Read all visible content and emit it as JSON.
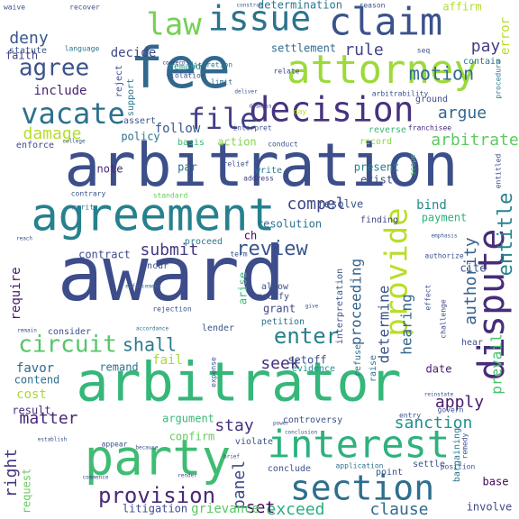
{
  "cloud": {
    "words": [
      {
        "text": "award",
        "size": 84,
        "color": "#3d4c8a",
        "rot": 0
      },
      {
        "text": "arbitration",
        "size": 66,
        "color": "#3c4f8a",
        "rot": 0
      },
      {
        "text": "fee",
        "size": 62,
        "color": "#31688e",
        "rot": 0
      },
      {
        "text": "arbitrator",
        "size": 60,
        "color": "#35b779",
        "rot": 0
      },
      {
        "text": "party",
        "size": 54,
        "color": "#3fbc73",
        "rot": 0
      },
      {
        "text": "agreement",
        "size": 50,
        "color": "#26818e",
        "rot": 0
      },
      {
        "text": "attorney",
        "size": 44,
        "color": "#9dd93b",
        "rot": 0
      },
      {
        "text": "interest",
        "size": 42,
        "color": "#2db27d",
        "rot": 0
      },
      {
        "text": "claim",
        "size": 42,
        "color": "#3b528b",
        "rot": 0
      },
      {
        "text": "dispute",
        "size": 40,
        "color": "#472c7a",
        "rot": 90
      },
      {
        "text": "decision",
        "size": 38,
        "color": "#46327e",
        "rot": 0
      },
      {
        "text": "issue",
        "size": 38,
        "color": "#2c738e",
        "rot": 0
      },
      {
        "text": "section",
        "size": 38,
        "color": "#2e6e8e",
        "rot": 0
      },
      {
        "text": "provide",
        "size": 34,
        "color": "#b8de29",
        "rot": 90
      },
      {
        "text": "law",
        "size": 34,
        "color": "#75d054",
        "rot": 0
      },
      {
        "text": "vacate",
        "size": 32,
        "color": "#2d718e",
        "rot": 0
      },
      {
        "text": "file",
        "size": 32,
        "color": "#433e85",
        "rot": 0
      },
      {
        "text": "agree",
        "size": 26,
        "color": "#3b528b",
        "rot": 0
      },
      {
        "text": "circuit",
        "size": 26,
        "color": "#55c667",
        "rot": 0
      },
      {
        "text": "provision",
        "size": 24,
        "color": "#482878",
        "rot": 0
      },
      {
        "text": "enter",
        "size": 24,
        "color": "#27808e",
        "rot": 0
      },
      {
        "text": "entitle",
        "size": 22,
        "color": "#25858e",
        "rot": 90
      },
      {
        "text": "review",
        "size": 22,
        "color": "#3a548c",
        "rot": 0
      },
      {
        "text": "motion",
        "size": 20,
        "color": "#2f6c8e",
        "rot": 0
      },
      {
        "text": "arbitrate",
        "size": 18,
        "color": "#5ec962",
        "rot": 0
      },
      {
        "text": "damage",
        "size": 18,
        "color": "#b5de2b",
        "rot": 0
      },
      {
        "text": "argue",
        "size": 18,
        "color": "#31688e",
        "rot": 0
      },
      {
        "text": "rule",
        "size": 18,
        "color": "#414487",
        "rot": 0
      },
      {
        "text": "deny",
        "size": 18,
        "color": "#39568c",
        "rot": 0
      },
      {
        "text": "pay",
        "size": 18,
        "color": "#433e85",
        "rot": 0
      },
      {
        "text": "shall",
        "size": 20,
        "color": "#2a788e",
        "rot": 0
      },
      {
        "text": "submit",
        "size": 18,
        "color": "#453882",
        "rot": 0
      },
      {
        "text": "compel",
        "size": 18,
        "color": "#404688",
        "rot": 0
      },
      {
        "text": "seek",
        "size": 18,
        "color": "#472d7b",
        "rot": 0
      },
      {
        "text": "stay",
        "size": 18,
        "color": "#46307e",
        "rot": 0
      },
      {
        "text": "matter",
        "size": 18,
        "color": "#482576",
        "rot": 0
      },
      {
        "text": "apply",
        "size": 18,
        "color": "#481a6c",
        "rot": 0
      },
      {
        "text": "sanction",
        "size": 18,
        "color": "#21918c",
        "rot": 0
      },
      {
        "text": "exceed",
        "size": 18,
        "color": "#29af7f",
        "rot": 0
      },
      {
        "text": "clause",
        "size": 18,
        "color": "#306a8e",
        "rot": 0
      },
      {
        "text": "panel",
        "size": 18,
        "color": "#3f4889",
        "rot": 90
      },
      {
        "text": "set",
        "size": 18,
        "color": "#450457",
        "rot": 0
      },
      {
        "text": "right",
        "size": 18,
        "color": "#46337f",
        "rot": 90
      },
      {
        "text": "authority",
        "size": 18,
        "color": "#355f8d",
        "rot": 90
      },
      {
        "text": "prevail",
        "size": 16,
        "color": "#4ac16d",
        "rot": 90
      },
      {
        "text": "proceeding",
        "size": 16,
        "color": "#33638d",
        "rot": 90
      },
      {
        "text": "determine",
        "size": 16,
        "color": "#3b518b",
        "rot": 90
      },
      {
        "text": "hearing",
        "size": 16,
        "color": "#32658e",
        "rot": 90
      },
      {
        "text": "require",
        "size": 14,
        "color": "#48186a",
        "rot": 90
      },
      {
        "text": "include",
        "size": 14,
        "color": "#481f70",
        "rot": 0
      },
      {
        "text": "decide",
        "size": 14,
        "color": "#3f4788",
        "rot": 0
      },
      {
        "text": "determination",
        "size": 12,
        "color": "#2a788e",
        "rot": 0
      },
      {
        "text": "settlement",
        "size": 12,
        "color": "#31688e",
        "rot": 0
      },
      {
        "text": "affirm",
        "size": 12,
        "color": "#b0dd2f",
        "rot": 0
      },
      {
        "text": "error",
        "size": 14,
        "color": "#b8de29",
        "rot": 90
      },
      {
        "text": "faith",
        "size": 12,
        "color": "#433e85",
        "rot": 0
      },
      {
        "text": "follow",
        "size": 14,
        "color": "#38598c",
        "rot": 0
      },
      {
        "text": "policy",
        "size": 12,
        "color": "#2c728e",
        "rot": 0
      },
      {
        "text": "action",
        "size": 12,
        "color": "#84d44b",
        "rot": 0
      },
      {
        "text": "cost",
        "size": 14,
        "color": "#a8db34",
        "rot": 0
      },
      {
        "text": "note",
        "size": 12,
        "color": "#482979",
        "rot": 0
      },
      {
        "text": "par",
        "size": 12,
        "color": "#2d708e",
        "rot": 0
      },
      {
        "text": "present",
        "size": 12,
        "color": "#277f8e",
        "rot": 0
      },
      {
        "text": "exist",
        "size": 12,
        "color": "#3d4e8a",
        "rot": 0
      },
      {
        "text": "resolution",
        "size": 12,
        "color": "#2d708e",
        "rot": 0
      },
      {
        "text": "bind",
        "size": 14,
        "color": "#238a8d",
        "rot": 0
      },
      {
        "text": "payment",
        "size": 12,
        "color": "#2fb47c",
        "rot": 0
      },
      {
        "text": "resolve",
        "size": 12,
        "color": "#3a538b",
        "rot": 0
      },
      {
        "text": "contract",
        "size": 12,
        "color": "#3e4989",
        "rot": 0
      },
      {
        "text": "favor",
        "size": 14,
        "color": "#31688e",
        "rot": 0
      },
      {
        "text": "remand",
        "size": 12,
        "color": "#2c728e",
        "rot": 0
      },
      {
        "text": "contend",
        "size": 12,
        "color": "#2e6f8e",
        "rot": 0
      },
      {
        "text": "result",
        "size": 12,
        "color": "#472f7d",
        "rot": 0
      },
      {
        "text": "date",
        "size": 12,
        "color": "#481b6d",
        "rot": 0
      },
      {
        "text": "argument",
        "size": 12,
        "color": "#38b977",
        "rot": 0
      },
      {
        "text": "confirm",
        "size": 12,
        "color": "#65cb5e",
        "rot": 0
      },
      {
        "text": "request",
        "size": 12,
        "color": "#67cc5c",
        "rot": 90
      },
      {
        "text": "litigation",
        "size": 12,
        "color": "#3d4d8a",
        "rot": 0
      },
      {
        "text": "grievance",
        "size": 14,
        "color": "#58c765",
        "rot": 0
      },
      {
        "text": "bargaining",
        "size": 10,
        "color": "#2a788e",
        "rot": 90
      },
      {
        "text": "base",
        "size": 12,
        "color": "#440154",
        "rot": 0
      },
      {
        "text": "involve",
        "size": 12,
        "color": "#3e4a89",
        "rot": 0
      },
      {
        "text": "fail",
        "size": 14,
        "color": "#a5db36",
        "rot": 0
      },
      {
        "text": "grant",
        "size": 12,
        "color": "#404588",
        "rot": 0
      },
      {
        "text": "arise",
        "size": 12,
        "color": "#3aba76",
        "rot": 90
      },
      {
        "text": "modify",
        "size": 10,
        "color": "#3d4e8a",
        "rot": 0
      },
      {
        "text": "refuse",
        "size": 10,
        "color": "#2d708e",
        "rot": 90
      },
      {
        "text": "raise",
        "size": 10,
        "color": "#2c728e",
        "rot": 90
      },
      {
        "text": "setoff",
        "size": 12,
        "color": "#3b528b",
        "rot": 0
      },
      {
        "text": "evidence",
        "size": 10,
        "color": "#21918c",
        "rot": 0
      },
      {
        "text": "ch",
        "size": 12,
        "color": "#440154",
        "rot": 0
      },
      {
        "text": "write",
        "size": 10,
        "color": "#2a788e",
        "rot": 0
      },
      {
        "text": "relief",
        "size": 8,
        "color": "#3b528b",
        "rot": 0
      },
      {
        "text": "address",
        "size": 8,
        "color": "#443983",
        "rot": 0
      },
      {
        "text": "incur",
        "size": 10,
        "color": "#3b528b",
        "rot": 0
      },
      {
        "text": "proceed",
        "size": 10,
        "color": "#2a788e",
        "rot": 0
      },
      {
        "text": "term",
        "size": 8,
        "color": "#39558c",
        "rot": 0
      },
      {
        "text": "standard",
        "size": 8,
        "color": "#6ccd5a",
        "rot": 0
      },
      {
        "text": "contrary",
        "size": 8,
        "color": "#3b528b",
        "rot": 0
      },
      {
        "text": "merit",
        "size": 8,
        "color": "#2c728e",
        "rot": 0
      },
      {
        "text": "enforce",
        "size": 10,
        "color": "#3f4889",
        "rot": 0
      },
      {
        "text": "reject",
        "size": 10,
        "color": "#3e4989",
        "rot": 90
      },
      {
        "text": "support",
        "size": 10,
        "color": "#2b758e",
        "rot": 90
      },
      {
        "text": "basis",
        "size": 10,
        "color": "#3aba76",
        "rot": 0
      },
      {
        "text": "demand",
        "size": 10,
        "color": "#21918c",
        "rot": 0
      },
      {
        "text": "violation",
        "size": 8,
        "color": "#3b528b",
        "rot": 0
      },
      {
        "text": "discretion",
        "size": 8,
        "color": "#2a788e",
        "rot": 0
      },
      {
        "text": "concern",
        "size": 6,
        "color": "#482878",
        "rot": 0
      },
      {
        "text": "relate",
        "size": 8,
        "color": "#3e4989",
        "rot": 0
      },
      {
        "text": "limit",
        "size": 8,
        "color": "#2c728e",
        "rot": 0
      },
      {
        "text": "deliver",
        "size": 6,
        "color": "#3b528b",
        "rot": 0
      },
      {
        "text": "arbitrability",
        "size": 8,
        "color": "#3b528b",
        "rot": 0
      },
      {
        "text": "ground",
        "size": 10,
        "color": "#3d4e8a",
        "rot": 0
      },
      {
        "text": "franchisee",
        "size": 8,
        "color": "#482878",
        "rot": 0
      },
      {
        "text": "reverse",
        "size": 10,
        "color": "#35b779",
        "rot": 0
      },
      {
        "text": "record",
        "size": 10,
        "color": "#8bd646",
        "rot": 0
      },
      {
        "text": "conduct",
        "size": 8,
        "color": "#3b528b",
        "rot": 0
      },
      {
        "text": "interpret",
        "size": 8,
        "color": "#3b528b",
        "rot": 0
      },
      {
        "text": "assert",
        "size": 10,
        "color": "#3b528b",
        "rot": 0
      },
      {
        "text": "college",
        "size": 6,
        "color": "#3b528b",
        "rot": 0
      },
      {
        "text": "day",
        "size": 8,
        "color": "#b8de29",
        "rot": 0
      },
      {
        "text": "language",
        "size": 8,
        "color": "#2a788e",
        "rot": 0
      },
      {
        "text": "statute",
        "size": 10,
        "color": "#3b528b",
        "rot": 0
      },
      {
        "text": "contain",
        "size": 10,
        "color": "#2c728e",
        "rot": 0
      },
      {
        "text": "seq",
        "size": 8,
        "color": "#3b528b",
        "rot": 0
      },
      {
        "text": "reason",
        "size": 8,
        "color": "#3b528b",
        "rot": 0
      },
      {
        "text": "recover",
        "size": 8,
        "color": "#3b528b",
        "rot": 0
      },
      {
        "text": "waive",
        "size": 8,
        "color": "#3b528b",
        "rot": 0
      },
      {
        "text": "construe",
        "size": 6,
        "color": "#3b528b",
        "rot": 0
      },
      {
        "text": "procedure",
        "size": 8,
        "color": "#2a788e",
        "rot": 90
      },
      {
        "text": "entitled",
        "size": 8,
        "color": "#3e4989",
        "rot": 90
      },
      {
        "text": "scope",
        "size": 8,
        "color": "#44bf70",
        "rot": 90
      },
      {
        "text": "interpretation",
        "size": 10,
        "color": "#3b528b",
        "rot": 90
      },
      {
        "text": "finding",
        "size": 10,
        "color": "#3e4989",
        "rot": 0
      },
      {
        "text": "allow",
        "size": 10,
        "color": "#3b528b",
        "rot": 0
      },
      {
        "text": "petition",
        "size": 10,
        "color": "#2c728e",
        "rot": 0
      },
      {
        "text": "cite",
        "size": 12,
        "color": "#3b528b",
        "rot": 0
      },
      {
        "text": "lender",
        "size": 10,
        "color": "#3b528b",
        "rot": 0
      },
      {
        "text": "consider",
        "size": 10,
        "color": "#3b528b",
        "rot": 0
      },
      {
        "text": "rejection",
        "size": 8,
        "color": "#3b528b",
        "rot": 0
      },
      {
        "text": "enforcement",
        "size": 6,
        "color": "#2a788e",
        "rot": 0
      },
      {
        "text": "remain",
        "size": 6,
        "color": "#3b528b",
        "rot": 0
      },
      {
        "text": "accordance",
        "size": 6,
        "color": "#2c728e",
        "rot": 0
      },
      {
        "text": "expense",
        "size": 8,
        "color": "#3b528b",
        "rot": 90
      },
      {
        "text": "appear",
        "size": 8,
        "color": "#3b528b",
        "rot": 0
      },
      {
        "text": "because",
        "size": 6,
        "color": "#3b528b",
        "rot": 0
      },
      {
        "text": "violate",
        "size": 10,
        "color": "#3b528b",
        "rot": 0
      },
      {
        "text": "controversy",
        "size": 10,
        "color": "#3b528b",
        "rot": 0
      },
      {
        "text": "conclusion",
        "size": 6,
        "color": "#3b528b",
        "rot": 0
      },
      {
        "text": "power",
        "size": 6,
        "color": "#3b528b",
        "rot": 0
      },
      {
        "text": "entry",
        "size": 8,
        "color": "#3b528b",
        "rot": 0
      },
      {
        "text": "conclude",
        "size": 10,
        "color": "#3b528b",
        "rot": 0
      },
      {
        "text": "application",
        "size": 8,
        "color": "#2c728e",
        "rot": 0
      },
      {
        "text": "settle",
        "size": 10,
        "color": "#3b528b",
        "rot": 0
      },
      {
        "text": "position",
        "size": 8,
        "color": "#3b528b",
        "rot": 0
      },
      {
        "text": "point",
        "size": 10,
        "color": "#3b528b",
        "rot": 0
      },
      {
        "text": "remedy",
        "size": 8,
        "color": "#3b528b",
        "rot": 90
      },
      {
        "text": "hear",
        "size": 10,
        "color": "#3b528b",
        "rot": 0
      },
      {
        "text": "govern",
        "size": 8,
        "color": "#3b528b",
        "rot": 0
      },
      {
        "text": "emphasis",
        "size": 6,
        "color": "#3b528b",
        "rot": 0
      },
      {
        "text": "authorize",
        "size": 8,
        "color": "#3b528b",
        "rot": 0
      },
      {
        "text": "effect",
        "size": 8,
        "color": "#3b528b",
        "rot": 90
      },
      {
        "text": "challenge",
        "size": 8,
        "color": "#3e4989",
        "rot": 90
      },
      {
        "text": "give",
        "size": 6,
        "color": "#3b528b",
        "rot": 0
      },
      {
        "text": "reinstate",
        "size": 6,
        "color": "#3b528b",
        "rot": 0
      },
      {
        "text": "render",
        "size": 6,
        "color": "#3b528b",
        "rot": 0
      },
      {
        "text": "brief",
        "size": 6,
        "color": "#3b528b",
        "rot": 0
      },
      {
        "text": "establish",
        "size": 6,
        "color": "#3b528b",
        "rot": 0
      },
      {
        "text": "dismiss",
        "size": 6,
        "color": "#3b528b",
        "rot": 0
      },
      {
        "text": "reach",
        "size": 6,
        "color": "#3b528b",
        "rot": 0
      },
      {
        "text": "commence",
        "size": 6,
        "color": "#3b528b",
        "rot": 0
      }
    ]
  }
}
